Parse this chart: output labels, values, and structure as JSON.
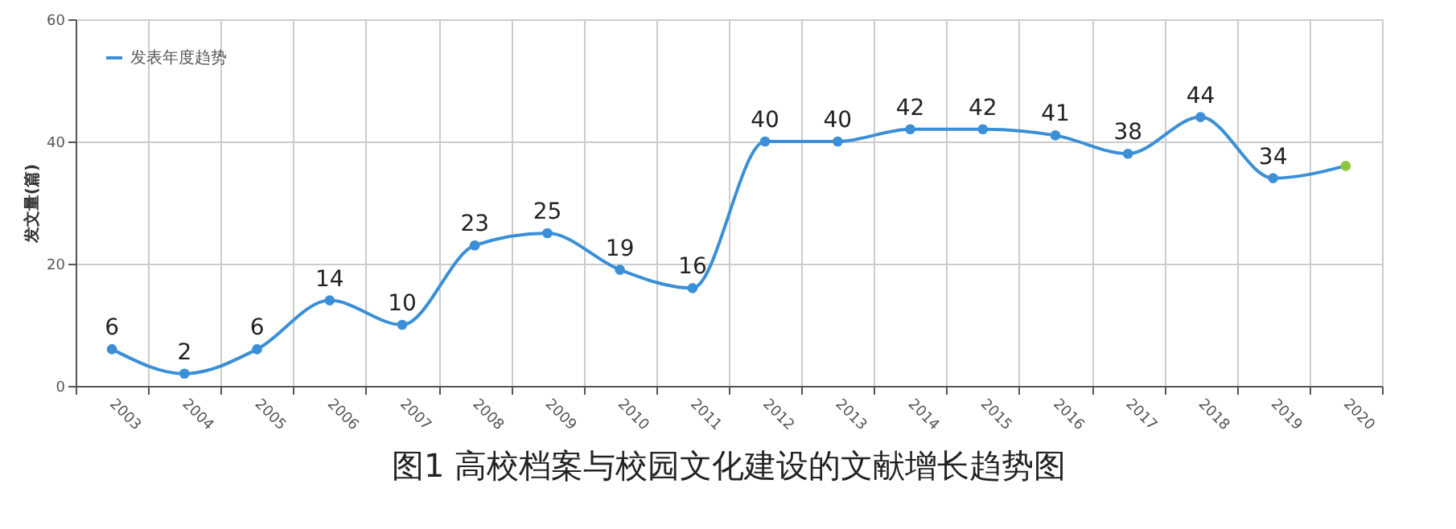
{
  "chart_data": {
    "type": "line",
    "title": "图1  高校档案与校园文化建设的文献增长趋势图",
    "ylabel": "发文量(篇)",
    "categories": [
      "2003",
      "2004",
      "2005",
      "2006",
      "2007",
      "2008",
      "2009",
      "2010",
      "2011",
      "2012",
      "2013",
      "2014",
      "2015",
      "2016",
      "2017",
      "2018",
      "2019",
      "2020"
    ],
    "series": [
      {
        "name": "发表年度趋势",
        "color": "#3a8fd6",
        "values": [
          6,
          2,
          6,
          14,
          10,
          23,
          25,
          19,
          16,
          40,
          40,
          42,
          42,
          41,
          38,
          44,
          34,
          36
        ],
        "colors": [
          "#3a8fd6",
          "#3a8fd6",
          "#3a8fd6",
          "#3a8fd6",
          "#3a8fd6",
          "#3a8fd6",
          "#3a8fd6",
          "#3a8fd6",
          "#3a8fd6",
          "#3a8fd6",
          "#3a8fd6",
          "#3a8fd6",
          "#3a8fd6",
          "#3a8fd6",
          "#3a8fd6",
          "#3a8fd6",
          "#3a8fd6",
          "#8cc63f"
        ],
        "value_labels": [
          "6",
          "2",
          "6",
          "14",
          "10",
          "23",
          "25",
          "19",
          "16",
          "40",
          "40",
          "42",
          "42",
          "41",
          "38",
          "44",
          "34",
          null
        ]
      }
    ],
    "ylim": [
      0,
      60
    ],
    "yticks": [
      0,
      20,
      40,
      60
    ],
    "grid": true,
    "legend": "top left",
    "marker": "circle",
    "line_style": "solid"
  }
}
